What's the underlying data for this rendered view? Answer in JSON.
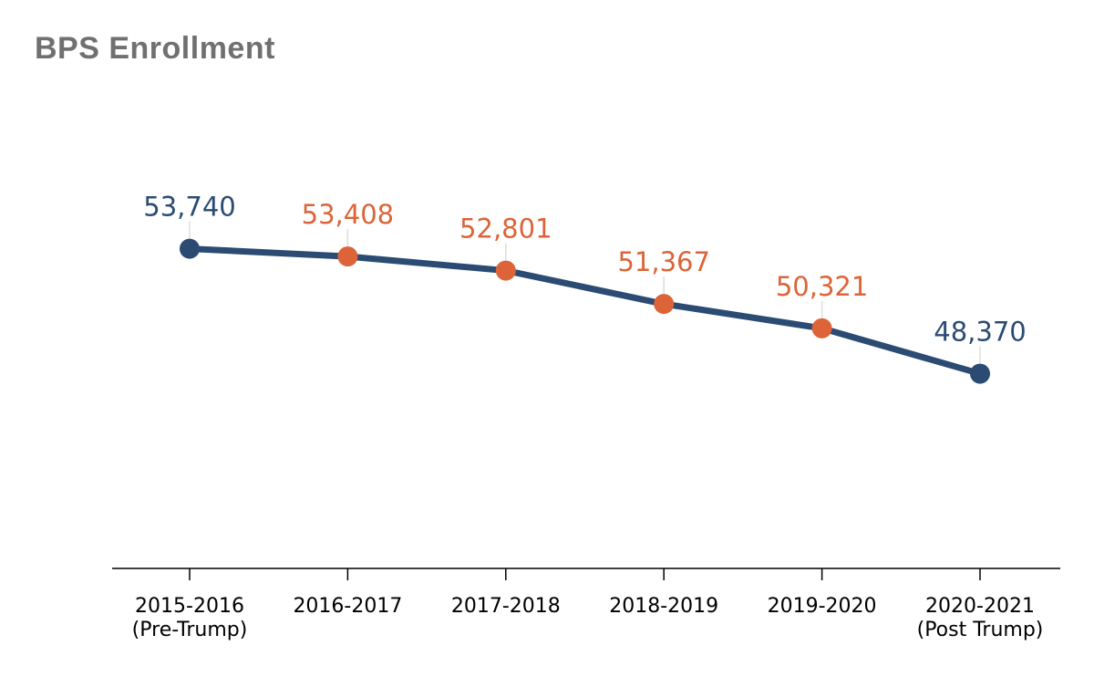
{
  "chart_data": {
    "type": "line",
    "title": "BPS Enrollment",
    "xlabel": "",
    "ylabel": "",
    "grid": false,
    "ylim": [
      40000,
      60000
    ],
    "categories": [
      [
        "2015-2016",
        "(Pre-Trump)"
      ],
      [
        "2016-2017"
      ],
      [
        "2017-2018"
      ],
      [
        "2018-2019"
      ],
      [
        "2019-2020"
      ],
      [
        "2020-2021",
        "(Post Trump)"
      ]
    ],
    "values": [
      53740,
      53408,
      52801,
      51367,
      50321,
      48370
    ],
    "value_labels": [
      "53,740",
      "53,408",
      "52,801",
      "51,367",
      "50,321",
      "48,370"
    ],
    "point_colors": [
      "#2b4b73",
      "#dc6438",
      "#dc6438",
      "#dc6438",
      "#dc6438",
      "#2b4b73"
    ],
    "line_color": "#2b4b73"
  }
}
